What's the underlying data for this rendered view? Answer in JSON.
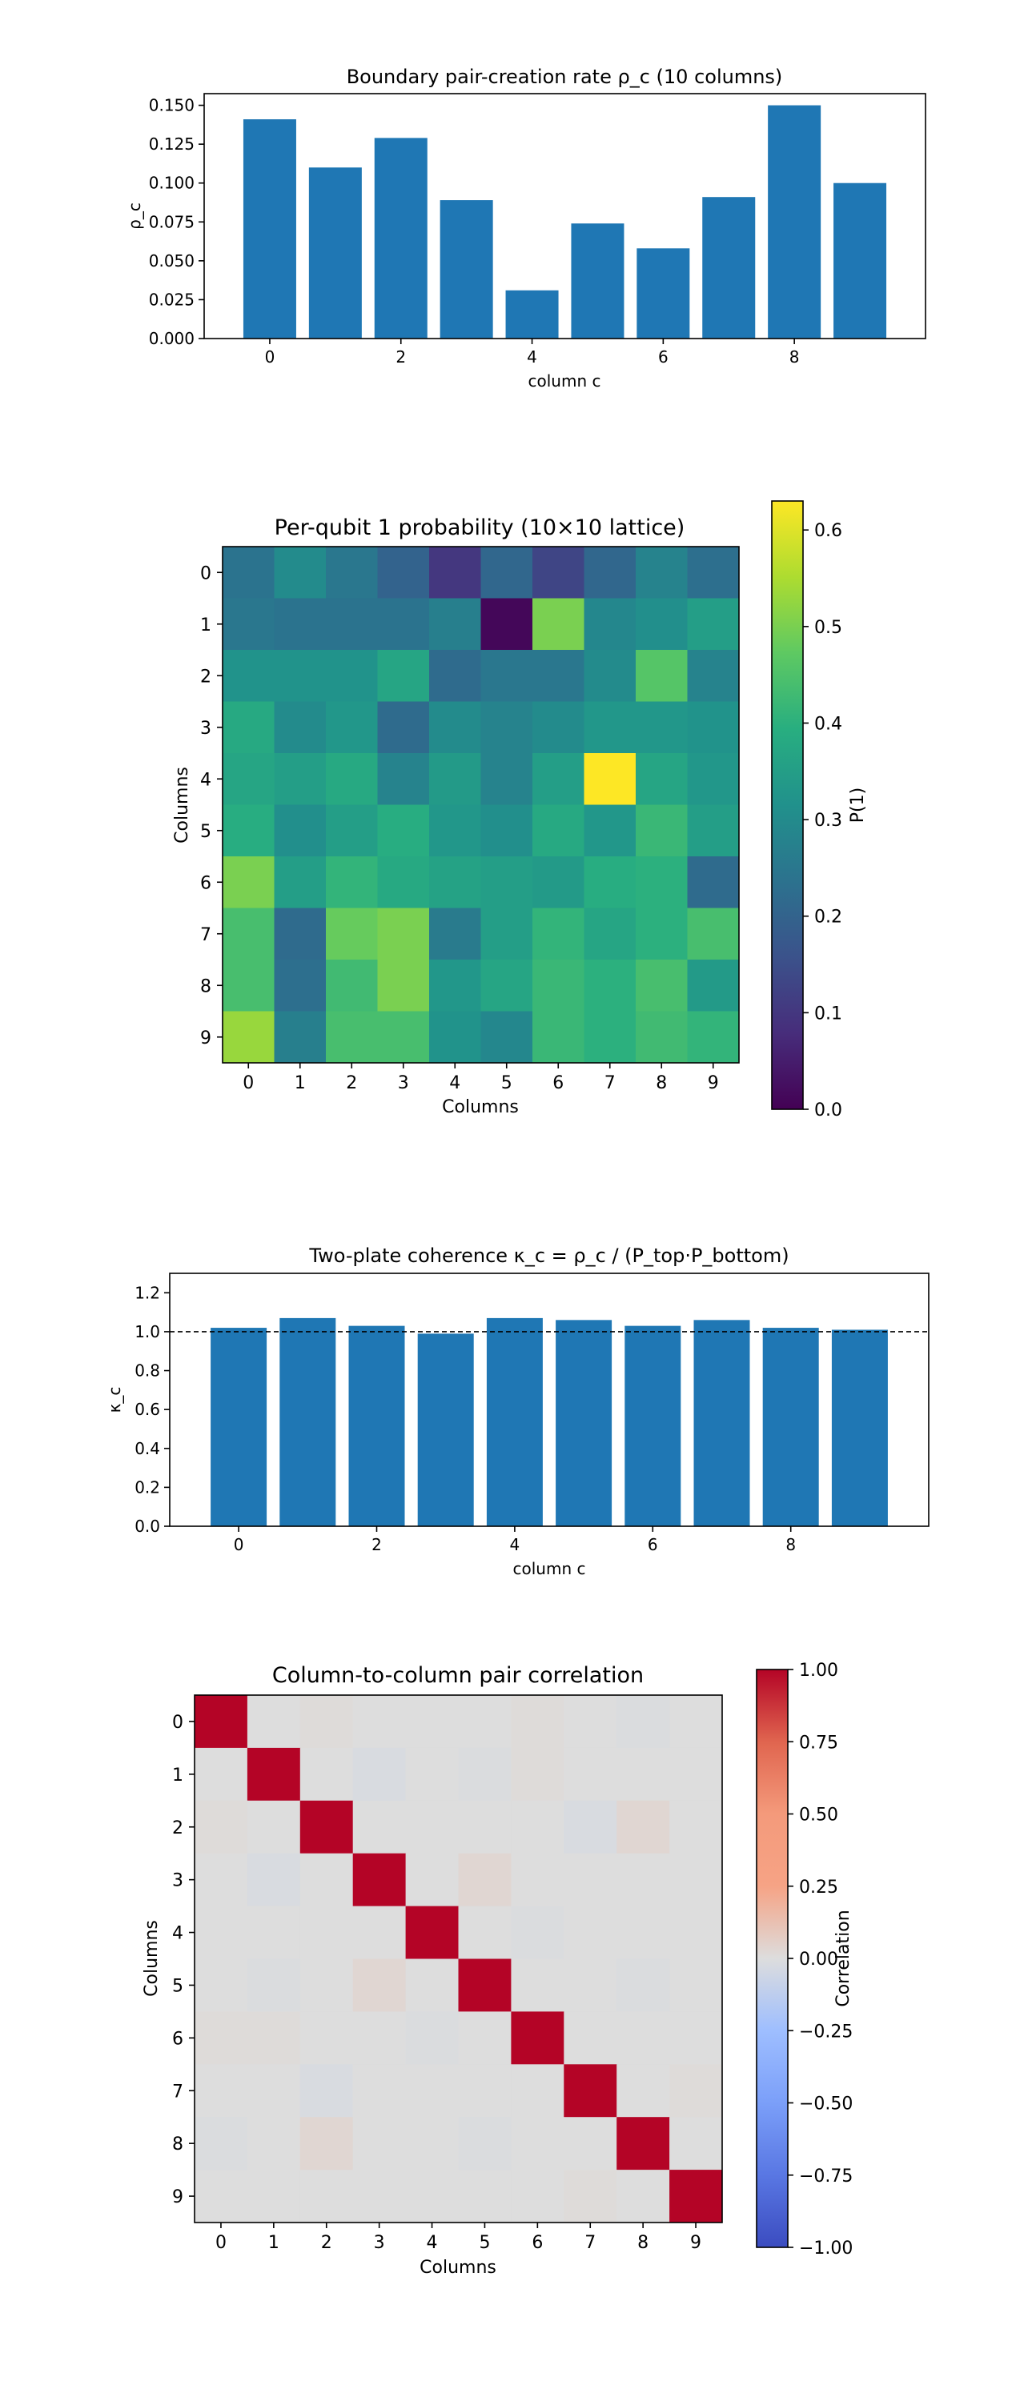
{
  "chart_data": [
    {
      "type": "bar",
      "title": "Boundary pair-creation rate ρ_c (10 columns)",
      "xlabel": "column c",
      "ylabel": "ρ_c",
      "categories": [
        0,
        1,
        2,
        3,
        4,
        5,
        6,
        7,
        8,
        9
      ],
      "values": [
        0.141,
        0.11,
        0.129,
        0.089,
        0.031,
        0.074,
        0.058,
        0.091,
        0.15,
        0.1
      ],
      "xticks": [
        "0",
        "2",
        "4",
        "6",
        "8"
      ],
      "yticks": [
        "0.000",
        "0.025",
        "0.050",
        "0.075",
        "0.100",
        "0.125",
        "0.150"
      ],
      "ylim": [
        0,
        0.1575
      ],
      "bar_color": "#1f77b4",
      "grid": false
    },
    {
      "type": "heatmap",
      "title": "Per-qubit 1 probability (10×10 lattice)",
      "xlabel": "Columns",
      "ylabel": "Columns",
      "colorbar_label": "P(1)",
      "colormap": "viridis",
      "vmin": 0.0,
      "vmax": 0.63,
      "xticks": [
        "0",
        "1",
        "2",
        "3",
        "4",
        "5",
        "6",
        "7",
        "8",
        "9"
      ],
      "yticks": [
        "0",
        "1",
        "2",
        "3",
        "4",
        "5",
        "6",
        "7",
        "8",
        "9"
      ],
      "colorbar_ticks": [
        "0.0",
        "0.1",
        "0.2",
        "0.3",
        "0.4",
        "0.5",
        "0.6"
      ],
      "values": [
        [
          0.24,
          0.3,
          0.25,
          0.2,
          0.1,
          0.21,
          0.13,
          0.21,
          0.28,
          0.23
        ],
        [
          0.25,
          0.24,
          0.24,
          0.24,
          0.27,
          0.01,
          0.5,
          0.29,
          0.31,
          0.35
        ],
        [
          0.32,
          0.32,
          0.32,
          0.37,
          0.22,
          0.25,
          0.25,
          0.3,
          0.46,
          0.28
        ],
        [
          0.38,
          0.3,
          0.33,
          0.22,
          0.3,
          0.28,
          0.3,
          0.33,
          0.33,
          0.32
        ],
        [
          0.37,
          0.35,
          0.38,
          0.28,
          0.34,
          0.28,
          0.35,
          0.63,
          0.37,
          0.33
        ],
        [
          0.39,
          0.31,
          0.35,
          0.39,
          0.33,
          0.31,
          0.38,
          0.33,
          0.42,
          0.35
        ],
        [
          0.5,
          0.35,
          0.41,
          0.38,
          0.36,
          0.35,
          0.34,
          0.39,
          0.4,
          0.22
        ],
        [
          0.44,
          0.22,
          0.48,
          0.5,
          0.26,
          0.35,
          0.41,
          0.37,
          0.4,
          0.44
        ],
        [
          0.44,
          0.23,
          0.43,
          0.5,
          0.33,
          0.37,
          0.42,
          0.4,
          0.44,
          0.34
        ],
        [
          0.53,
          0.27,
          0.44,
          0.44,
          0.32,
          0.29,
          0.42,
          0.4,
          0.43,
          0.41
        ]
      ]
    },
    {
      "type": "bar",
      "title": "Two-plate coherence κ_c = ρ_c / (P_top·P_bottom)",
      "xlabel": "column c",
      "ylabel": "κ_c",
      "categories": [
        0,
        1,
        2,
        3,
        4,
        5,
        6,
        7,
        8,
        9
      ],
      "values": [
        1.02,
        1.07,
        1.03,
        0.99,
        1.07,
        1.06,
        1.03,
        1.06,
        1.02,
        1.01
      ],
      "reference_line": 1.0,
      "xticks": [
        "0",
        "2",
        "4",
        "6",
        "8"
      ],
      "yticks": [
        "0.0",
        "0.2",
        "0.4",
        "0.6",
        "0.8",
        "1.0",
        "1.2"
      ],
      "ylim": [
        0,
        1.3
      ],
      "bar_color": "#1f77b4",
      "grid": false
    },
    {
      "type": "heatmap",
      "title": "Column-to-column pair correlation",
      "xlabel": "Columns",
      "ylabel": "Columns",
      "colorbar_label": "Correlation",
      "colormap": "coolwarm",
      "vmin": -1.0,
      "vmax": 1.0,
      "xticks": [
        "0",
        "1",
        "2",
        "3",
        "4",
        "5",
        "6",
        "7",
        "8",
        "9"
      ],
      "yticks": [
        "0",
        "1",
        "2",
        "3",
        "4",
        "5",
        "6",
        "7",
        "8",
        "9"
      ],
      "colorbar_ticks": [
        "−1.00",
        "−0.75",
        "−0.50",
        "−0.25",
        "0.00",
        "0.25",
        "0.50",
        "0.75",
        "1.00"
      ],
      "values": [
        [
          1.0,
          0.0,
          0.01,
          0.0,
          0.0,
          0.0,
          0.01,
          0.0,
          -0.01,
          0.0
        ],
        [
          0.0,
          1.0,
          0.0,
          -0.02,
          0.0,
          -0.01,
          0.01,
          0.0,
          0.0,
          0.0
        ],
        [
          0.01,
          0.0,
          1.0,
          0.0,
          0.0,
          0.0,
          0.0,
          -0.02,
          0.03,
          0.0
        ],
        [
          0.0,
          -0.02,
          0.0,
          1.0,
          0.0,
          0.03,
          0.0,
          0.0,
          0.0,
          0.0
        ],
        [
          0.0,
          0.0,
          0.0,
          0.0,
          1.0,
          0.0,
          -0.01,
          0.0,
          0.0,
          0.0
        ],
        [
          0.0,
          -0.01,
          0.0,
          0.03,
          0.0,
          1.0,
          0.0,
          0.0,
          -0.01,
          0.0
        ],
        [
          0.01,
          0.01,
          0.0,
          0.0,
          -0.01,
          0.0,
          1.0,
          0.0,
          0.0,
          0.0
        ],
        [
          0.0,
          0.0,
          -0.02,
          0.0,
          0.0,
          0.0,
          0.0,
          1.0,
          0.0,
          0.01
        ],
        [
          -0.01,
          0.0,
          0.03,
          0.0,
          0.0,
          -0.01,
          0.0,
          0.0,
          1.0,
          0.0
        ],
        [
          0.0,
          0.0,
          0.0,
          0.0,
          0.0,
          0.0,
          0.0,
          0.01,
          0.0,
          1.0
        ]
      ]
    }
  ]
}
